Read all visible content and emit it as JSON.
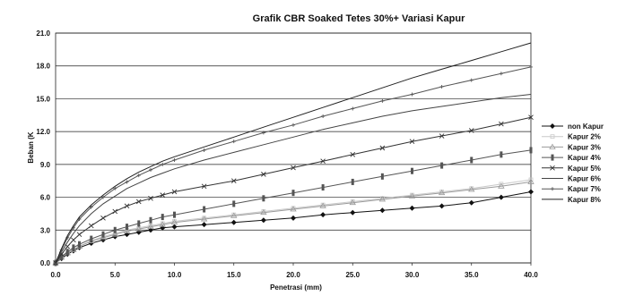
{
  "chart_data": {
    "type": "line",
    "title": "Grafik CBR Soaked Tetes 30%+ Variasi Kapur",
    "xlabel": "Penetrasi (mm)",
    "ylabel": "Beban (K",
    "xlim": [
      0,
      40
    ],
    "ylim": [
      0,
      21
    ],
    "x_ticks": [
      "0.0",
      "5.0",
      "10.0",
      "15.0",
      "20.0",
      "25.0",
      "30.0",
      "35.0",
      "40.0"
    ],
    "y_ticks": [
      "0.0",
      "3.0",
      "6.0",
      "9.0",
      "12.0",
      "15.0",
      "18.0",
      "21.0"
    ],
    "grid": "horizontal",
    "legend_position": "right",
    "x": [
      0,
      0.5,
      1,
      1.5,
      2,
      3,
      4,
      5,
      6,
      7,
      8,
      9,
      10,
      12.5,
      15,
      17.5,
      20,
      22.5,
      25,
      27.5,
      30,
      32.5,
      35,
      37.5,
      40
    ],
    "series": [
      {
        "name": "non Kapur",
        "color": "#111111",
        "marker": "diamond",
        "values": [
          0,
          0.4,
          0.8,
          1.1,
          1.4,
          1.8,
          2.1,
          2.4,
          2.6,
          2.8,
          3.0,
          3.2,
          3.3,
          3.5,
          3.7,
          3.9,
          4.1,
          4.4,
          4.6,
          4.8,
          5.0,
          5.2,
          5.5,
          6.0,
          6.5
        ]
      },
      {
        "name": "Kapur 2%",
        "color": "#c9c9c9",
        "marker": "square",
        "values": [
          0,
          0.5,
          0.9,
          1.2,
          1.5,
          2.0,
          2.4,
          2.7,
          3.0,
          3.2,
          3.4,
          3.6,
          3.8,
          4.1,
          4.4,
          4.7,
          5.0,
          5.3,
          5.6,
          5.9,
          6.2,
          6.5,
          6.8,
          7.2,
          7.6
        ]
      },
      {
        "name": "Kapur 3%",
        "color": "#9a9a9a",
        "marker": "triangle",
        "values": [
          0,
          0.5,
          0.9,
          1.2,
          1.5,
          2.0,
          2.3,
          2.6,
          2.9,
          3.1,
          3.3,
          3.5,
          3.7,
          4.0,
          4.3,
          4.6,
          4.9,
          5.2,
          5.5,
          5.8,
          6.1,
          6.4,
          6.7,
          7.0,
          7.4
        ]
      },
      {
        "name": "Kapur 4%",
        "color": "#555555",
        "marker": "bar",
        "values": [
          0,
          0.6,
          1.0,
          1.4,
          1.7,
          2.2,
          2.6,
          3.0,
          3.3,
          3.6,
          3.9,
          4.2,
          4.4,
          4.9,
          5.4,
          5.9,
          6.4,
          6.9,
          7.4,
          7.9,
          8.4,
          8.9,
          9.4,
          9.9,
          10.3
        ]
      },
      {
        "name": "Kapur 5%",
        "color": "#333333",
        "marker": "x",
        "values": [
          0,
          0.8,
          1.5,
          2.1,
          2.6,
          3.4,
          4.1,
          4.7,
          5.2,
          5.6,
          5.9,
          6.2,
          6.5,
          7.0,
          7.5,
          8.1,
          8.7,
          9.3,
          9.9,
          10.5,
          11.1,
          11.6,
          12.1,
          12.7,
          13.3
        ]
      },
      {
        "name": "Kapur 6%",
        "color": "#444444",
        "marker": "none",
        "values": [
          0,
          1.0,
          1.9,
          2.7,
          3.4,
          4.5,
          5.4,
          6.1,
          6.8,
          7.3,
          7.8,
          8.2,
          8.6,
          9.4,
          10.1,
          10.8,
          11.5,
          12.2,
          12.8,
          13.4,
          13.9,
          14.3,
          14.7,
          15.1,
          15.4
        ]
      },
      {
        "name": "Kapur 7%",
        "color": "#555555",
        "marker": "plus",
        "values": [
          0,
          1.2,
          2.3,
          3.2,
          4.0,
          5.1,
          6.0,
          6.8,
          7.4,
          8.0,
          8.5,
          9.0,
          9.4,
          10.3,
          11.1,
          11.9,
          12.6,
          13.4,
          14.1,
          14.8,
          15.4,
          16.1,
          16.7,
          17.3,
          17.9
        ]
      },
      {
        "name": "Kapur 8%",
        "color": "#222222",
        "marker": "none",
        "values": [
          0,
          1.3,
          2.5,
          3.4,
          4.2,
          5.3,
          6.2,
          7.0,
          7.7,
          8.3,
          8.8,
          9.3,
          9.7,
          10.6,
          11.5,
          12.4,
          13.3,
          14.2,
          15.1,
          16.0,
          16.9,
          17.7,
          18.5,
          19.3,
          20.1
        ]
      }
    ]
  }
}
